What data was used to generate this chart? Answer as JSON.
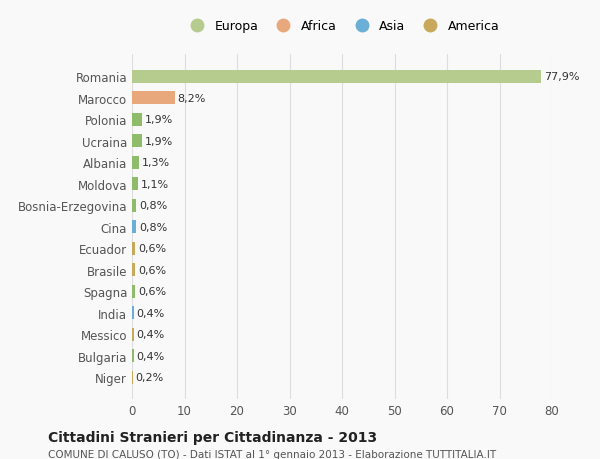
{
  "categories": [
    "Niger",
    "Bulgaria",
    "Messico",
    "India",
    "Spagna",
    "Brasile",
    "Ecuador",
    "Cina",
    "Bosnia-Erzegovina",
    "Moldova",
    "Albania",
    "Ucraina",
    "Polonia",
    "Marocco",
    "Romania"
  ],
  "values": [
    0.2,
    0.4,
    0.4,
    0.4,
    0.6,
    0.6,
    0.6,
    0.8,
    0.8,
    1.1,
    1.3,
    1.9,
    1.9,
    8.2,
    77.9
  ],
  "labels": [
    "0,2%",
    "0,4%",
    "0,4%",
    "0,4%",
    "0,6%",
    "0,6%",
    "0,6%",
    "0,8%",
    "0,8%",
    "1,1%",
    "1,3%",
    "1,9%",
    "1,9%",
    "8,2%",
    "77,9%"
  ],
  "colors": [
    "#c8a85a",
    "#8fbc6a",
    "#c8a85a",
    "#6baed6",
    "#8fbc6a",
    "#c8a85a",
    "#c8a85a",
    "#6baed6",
    "#8fbc6a",
    "#8fbc6a",
    "#8fbc6a",
    "#8fbc6a",
    "#8fbc6a",
    "#e8a87c",
    "#b5cc8e"
  ],
  "legend_labels": [
    "Europa",
    "Africa",
    "Asia",
    "America"
  ],
  "legend_colors": [
    "#b5cc8e",
    "#e8a87c",
    "#6baed6",
    "#c8a85a"
  ],
  "title": "Cittadini Stranieri per Cittadinanza - 2013",
  "subtitle": "COMUNE DI CALUSO (TO) - Dati ISTAT al 1° gennaio 2013 - Elaborazione TUTTITALIA.IT",
  "xlim": [
    0,
    80
  ],
  "xticks": [
    0,
    10,
    20,
    30,
    40,
    50,
    60,
    70,
    80
  ],
  "bg_color": "#f9f9f9",
  "grid_color": "#dddddd"
}
